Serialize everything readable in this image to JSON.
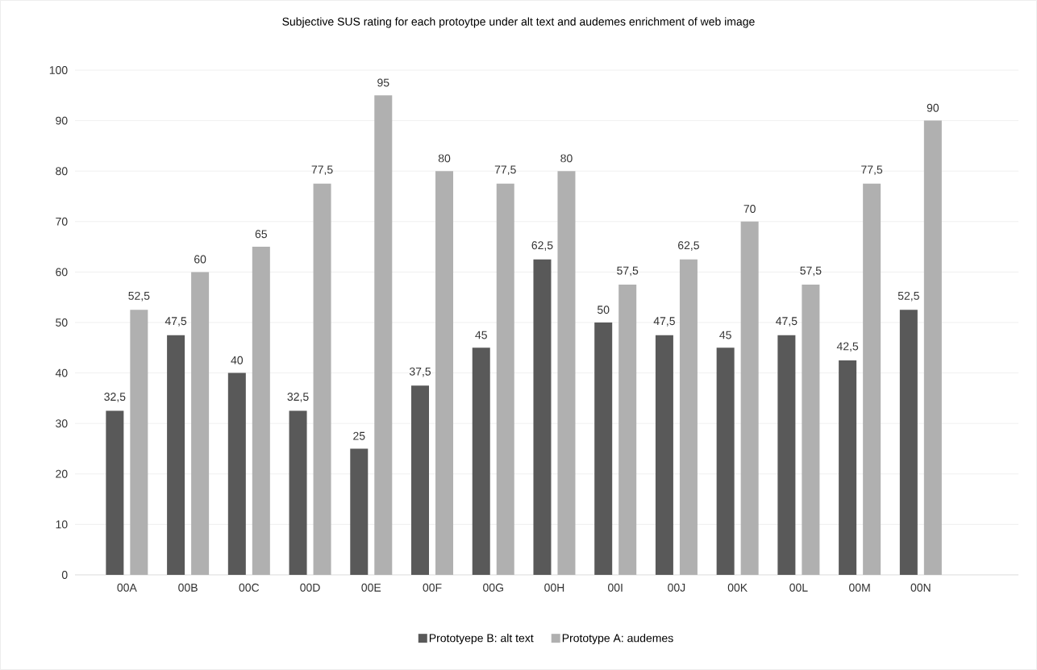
{
  "chart_data": {
    "type": "bar",
    "title": "Subjective SUS rating for each protoytpe under alt text and audemes enrichment of web image",
    "categories": [
      "00A",
      "00B",
      "00C",
      "00D",
      "00E",
      "00F",
      "00G",
      "00H",
      "00I",
      "00J",
      "00K",
      "00L",
      "00M",
      "00N"
    ],
    "series": [
      {
        "name": "Prototyepe B: alt text",
        "color": "#595959",
        "values": [
          32.5,
          47.5,
          40,
          32.5,
          25,
          37.5,
          45,
          62.5,
          50,
          47.5,
          45,
          47.5,
          42.5,
          52.5
        ],
        "value_labels": [
          "32,5",
          "47,5",
          "40",
          "32,5",
          "25",
          "37,5",
          "45",
          "62,5",
          "50",
          "47,5",
          "45",
          "47,5",
          "42,5",
          "52,5"
        ]
      },
      {
        "name": "Prototype A: audemes",
        "color": "#b0b0b0",
        "values": [
          52.5,
          60,
          65,
          77.5,
          95,
          80,
          77.5,
          80,
          57.5,
          62.5,
          70,
          57.5,
          77.5,
          90
        ],
        "value_labels": [
          "52,5",
          "60",
          "65",
          "77,5",
          "95",
          "80",
          "77,5",
          "80",
          "57,5",
          "62,5",
          "70",
          "57,5",
          "77,5",
          "90"
        ]
      }
    ],
    "ylim": [
      0,
      100
    ],
    "yticks": [
      0,
      10,
      20,
      30,
      40,
      50,
      60,
      70,
      80,
      90,
      100
    ],
    "grid": "y",
    "legend": "bottom"
  }
}
